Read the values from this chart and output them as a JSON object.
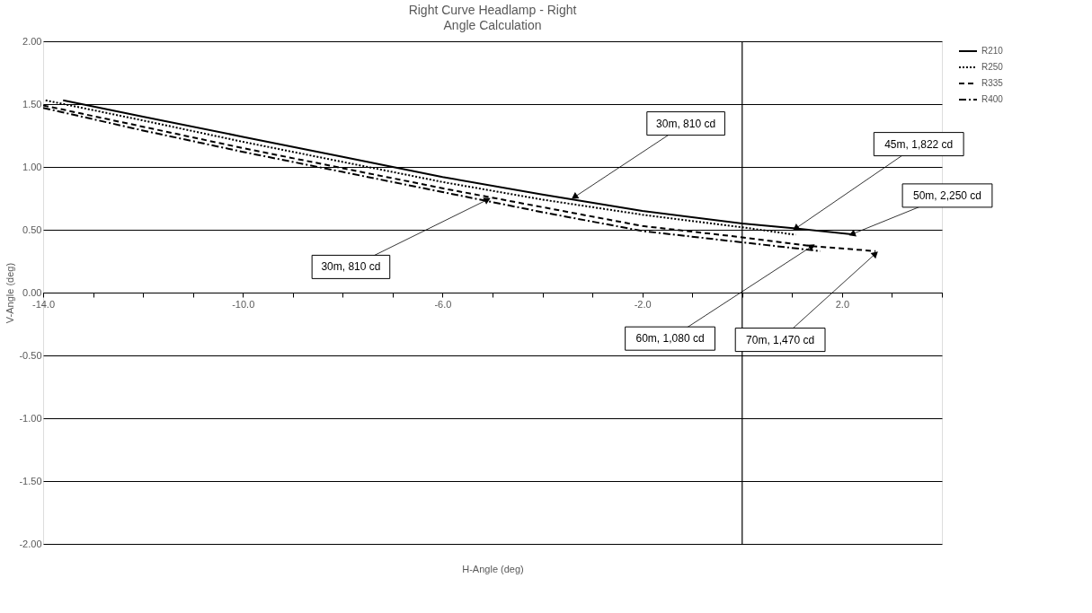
{
  "chart_data": {
    "type": "line",
    "title": "Right Curve Headlamp - Right",
    "subtitle": "Angle Calculation",
    "xlabel": "H-Angle (deg)",
    "ylabel": "V-Angle (deg)",
    "series": [
      {
        "name": "R210",
        "color": "#000000",
        "line_style": "solid",
        "x": [
          -13.6,
          -12,
          -10,
          -8,
          -6,
          -4,
          -2,
          0,
          1.07,
          2.19
        ],
        "values": [
          1.53,
          1.4,
          1.24,
          1.08,
          0.92,
          0.78,
          0.65,
          0.55,
          0.51,
          0.465
        ]
      },
      {
        "name": "R250",
        "color": "#000000",
        "line_style": "dotted",
        "x": [
          -13.95,
          -12,
          -10,
          -8,
          -6,
          -4,
          -2,
          0,
          1.07
        ],
        "values": [
          1.53,
          1.37,
          1.2,
          1.04,
          0.88,
          0.74,
          0.62,
          0.52,
          0.46
        ]
      },
      {
        "name": "R335",
        "color": "#000000",
        "line_style": "dashed",
        "x": [
          -14,
          -12,
          -10,
          -8,
          -6,
          -4,
          -2,
          0,
          1.4,
          2.67
        ],
        "values": [
          1.49,
          1.32,
          1.15,
          0.99,
          0.83,
          0.68,
          0.53,
          0.44,
          0.37,
          0.33
        ]
      },
      {
        "name": "R400",
        "color": "#000000",
        "line_style": "dashdot",
        "x": [
          -14,
          -12,
          -10,
          -8,
          -6,
          -4,
          -2,
          0,
          1.57
        ],
        "values": [
          1.47,
          1.29,
          1.12,
          0.96,
          0.8,
          0.64,
          0.49,
          0.4,
          0.33
        ]
      }
    ],
    "xlim": [
      -14,
      4
    ],
    "xticks": [
      {
        "value": -14,
        "label": "-14.0"
      },
      {
        "value": -13,
        "label": null
      },
      {
        "value": -12,
        "label": null
      },
      {
        "value": -11,
        "label": null
      },
      {
        "value": -10,
        "label": "-10.0"
      },
      {
        "value": -9,
        "label": null
      },
      {
        "value": -8,
        "label": null
      },
      {
        "value": -7,
        "label": null
      },
      {
        "value": -6,
        "label": "-6.0"
      },
      {
        "value": -5,
        "label": null
      },
      {
        "value": -4,
        "label": null
      },
      {
        "value": -3,
        "label": null
      },
      {
        "value": -2,
        "label": "-2.0"
      },
      {
        "value": -1,
        "label": null
      },
      {
        "value": 0,
        "label": null
      },
      {
        "value": 1,
        "label": null
      },
      {
        "value": 2,
        "label": "2.0"
      },
      {
        "value": 3,
        "label": null
      },
      {
        "value": 4,
        "label": null
      }
    ],
    "ylim": [
      -2,
      2
    ],
    "yticks": [
      {
        "value": -2,
        "label": "-2.00"
      },
      {
        "value": -1.5,
        "label": "-1.50"
      },
      {
        "value": -1,
        "label": "-1.00"
      },
      {
        "value": -0.5,
        "label": "-0.50"
      },
      {
        "value": 0,
        "label": "0.00"
      },
      {
        "value": 0.5,
        "label": "0.50"
      },
      {
        "value": 1,
        "label": "1.00"
      },
      {
        "value": 1.5,
        "label": "1.50"
      },
      {
        "value": 2,
        "label": "2.00"
      }
    ],
    "grid": "y",
    "legend": "right",
    "ref_lines": [
      {
        "axis": "x",
        "value": 0,
        "color": "#000000"
      }
    ],
    "annotations": [
      {
        "text": "30m, 810 cd",
        "x": -3.36,
        "y": 0.76
      },
      {
        "text": "30m, 810 cd",
        "x": -5.1,
        "y": 0.74
      },
      {
        "text": "45m, 1,822 cd",
        "x": 1.07,
        "y": 0.51
      },
      {
        "text": "50m, 2,250 cd",
        "x": 2.2,
        "y": 0.465
      },
      {
        "text": "60m, 1,080 cd",
        "x": 1.4,
        "y": 0.37
      },
      {
        "text": "70m, 1,470 cd",
        "x": 2.67,
        "y": 0.31
      }
    ]
  }
}
